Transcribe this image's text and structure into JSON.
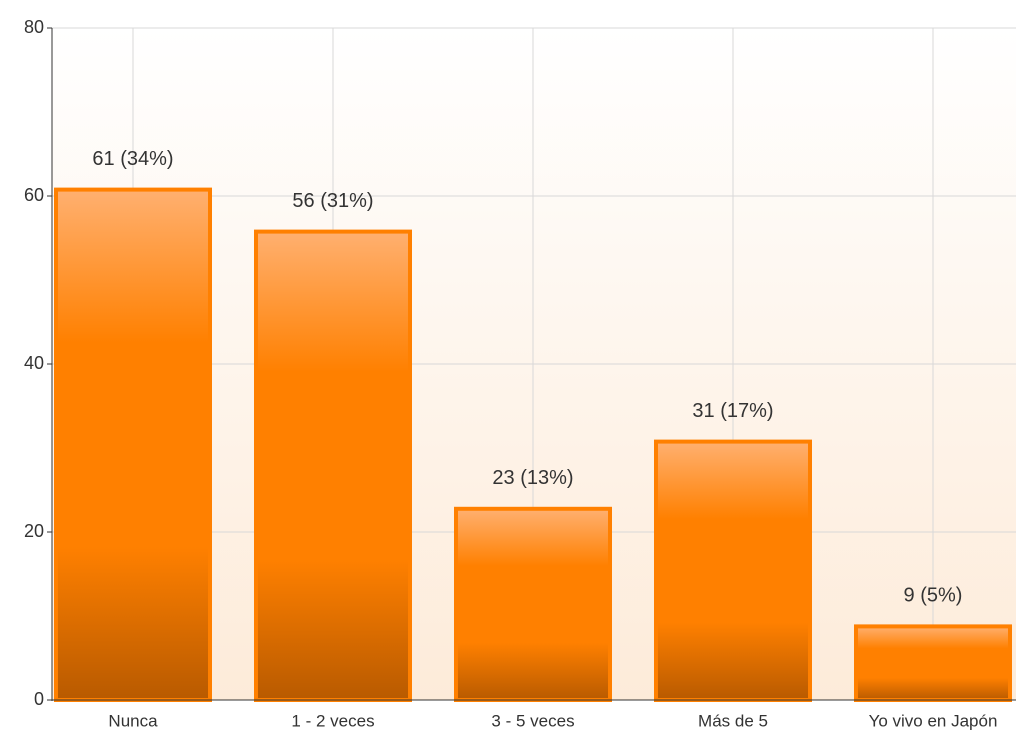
{
  "chart_data": {
    "type": "bar",
    "categories": [
      "Nunca",
      "1 - 2 veces",
      "3 - 5 veces",
      "Más de 5",
      "Yo vivo en Japón"
    ],
    "values": [
      61,
      56,
      23,
      31,
      9
    ],
    "value_labels": [
      "61 (34%)",
      "56 (31%)",
      "23 (13%)",
      "31 (17%)",
      "9 (5%)"
    ],
    "color": "#ff8000",
    "ylim": [
      0,
      80
    ],
    "yticks": [
      0,
      20,
      40,
      60,
      80
    ],
    "grid": true
  }
}
